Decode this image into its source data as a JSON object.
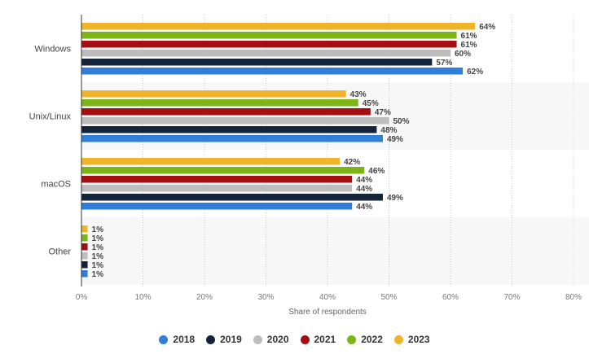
{
  "chart_data": {
    "type": "bar",
    "orientation": "horizontal",
    "categories": [
      "Windows",
      "Unix/Linux",
      "macOS",
      "Other"
    ],
    "series": [
      {
        "name": "2023",
        "color": "#f0b429",
        "values": [
          64,
          43,
          42,
          1
        ]
      },
      {
        "name": "2022",
        "color": "#7cb518",
        "values": [
          61,
          45,
          46,
          1
        ]
      },
      {
        "name": "2021",
        "color": "#a30f12",
        "values": [
          61,
          47,
          44,
          1
        ]
      },
      {
        "name": "2020",
        "color": "#bdbdbd",
        "values": [
          60,
          50,
          44,
          1
        ]
      },
      {
        "name": "2019",
        "color": "#14243b",
        "values": [
          57,
          48,
          49,
          1
        ]
      },
      {
        "name": "2018",
        "color": "#2f7ed8",
        "values": [
          62,
          49,
          44,
          1
        ]
      }
    ],
    "xlabel": "Share of respondents",
    "ylabel": "",
    "xlim": [
      0,
      80
    ],
    "x_ticks": [
      "0%",
      "10%",
      "20%",
      "30%",
      "40%",
      "50%",
      "60%",
      "70%",
      "80%"
    ],
    "value_suffix": "%",
    "grid": true,
    "legend_position": "bottom",
    "legend_order": [
      "2018",
      "2019",
      "2020",
      "2021",
      "2022",
      "2023"
    ]
  }
}
